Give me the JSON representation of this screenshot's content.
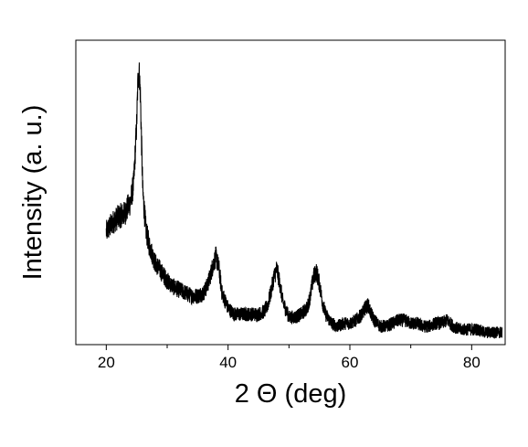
{
  "chart_data": {
    "type": "line",
    "title": "",
    "xlabel": "2 Θ (deg)",
    "ylabel": "Intensity (a. u.)",
    "xlim": [
      15,
      85.5
    ],
    "ylim": [
      0,
      1.0
    ],
    "x_ticks": [
      20,
      40,
      60,
      80
    ],
    "x_tick_labels": [
      "20",
      "40",
      "60",
      "80"
    ],
    "y_ticks": [],
    "y_tick_labels": [],
    "grid": false,
    "legend": "none",
    "line_color": "#000000",
    "series": [
      {
        "x": [
          20,
          21,
          22,
          23,
          24,
          24.5,
          25,
          25.2,
          25.4,
          25.6,
          25.8,
          26,
          26.5,
          27,
          28,
          29,
          30,
          31,
          32,
          33,
          34,
          35,
          36,
          36.5,
          37,
          37.5,
          38,
          38.5,
          39,
          40,
          41,
          42,
          43,
          44,
          45,
          46,
          46.5,
          47,
          47.5,
          48,
          48.5,
          49,
          50,
          51,
          52,
          53,
          53.5,
          54,
          54.5,
          55,
          55.5,
          56,
          57,
          58,
          59,
          60,
          61,
          62,
          62.5,
          63,
          63.5,
          64,
          65,
          66,
          67,
          68,
          69,
          70,
          71,
          72,
          73,
          74,
          75,
          76,
          77,
          78,
          79,
          80,
          81,
          82,
          83,
          84,
          85
        ],
        "y": [
          0.37,
          0.4,
          0.42,
          0.43,
          0.47,
          0.53,
          0.73,
          0.87,
          0.9,
          0.82,
          0.66,
          0.5,
          0.38,
          0.33,
          0.27,
          0.24,
          0.21,
          0.19,
          0.18,
          0.17,
          0.16,
          0.16,
          0.17,
          0.19,
          0.22,
          0.26,
          0.29,
          0.25,
          0.17,
          0.12,
          0.1,
          0.1,
          0.1,
          0.1,
          0.1,
          0.11,
          0.13,
          0.17,
          0.22,
          0.25,
          0.2,
          0.14,
          0.09,
          0.09,
          0.1,
          0.12,
          0.16,
          0.22,
          0.24,
          0.2,
          0.14,
          0.1,
          0.07,
          0.06,
          0.07,
          0.07,
          0.08,
          0.1,
          0.12,
          0.13,
          0.1,
          0.08,
          0.06,
          0.06,
          0.07,
          0.08,
          0.08,
          0.07,
          0.07,
          0.06,
          0.06,
          0.07,
          0.07,
          0.08,
          0.06,
          0.05,
          0.05,
          0.05,
          0.05,
          0.04,
          0.04,
          0.04,
          0.04
        ]
      }
    ]
  }
}
